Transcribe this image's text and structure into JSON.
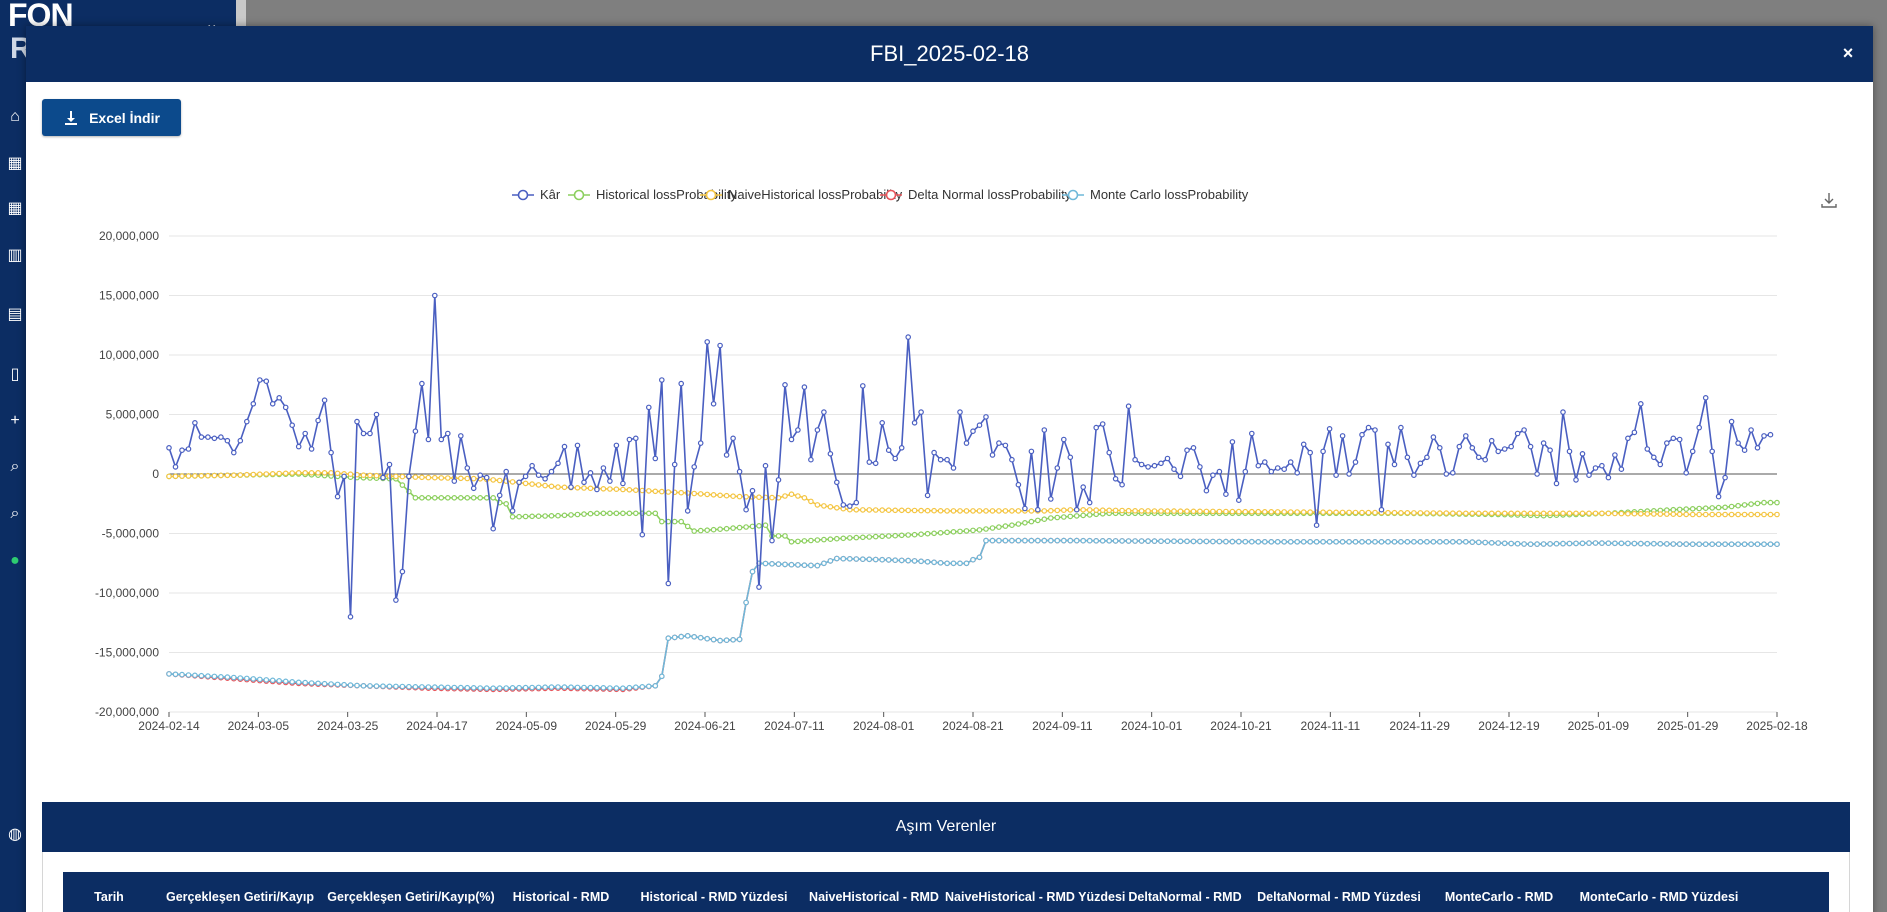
{
  "app": {
    "logo": "FON",
    "logo_sub": "R",
    "collapse_icon": "chevron-down-icon",
    "sidebar_icons": [
      "home-icon",
      "table-icon",
      "table-icon",
      "map-icon",
      "document-icon",
      "file-icon",
      "plus-icon",
      "search-icon",
      "search-icon",
      "dot-icon",
      "globe-icon"
    ]
  },
  "modal": {
    "title": "FBI_2025-02-18",
    "close_label": "×",
    "excel_button_label": "Excel İndir",
    "section_title": "Aşım Verenler",
    "table_headers": [
      "Tarih",
      "Gerçekleşen Getiri/Kayıp",
      "Gerçekleşen Getiri/Kayıp(%)",
      "Historical - RMD",
      "Historical - RMD Yüzdesi",
      "NaiveHistorical - RMD",
      "NaiveHistorical - RMD Yüzdesi",
      "DeltaNormal - RMD",
      "DeltaNormal - RMD Yüzdesi",
      "MonteCarlo - RMD",
      "MonteCarlo - RMD Yüzdesi"
    ]
  },
  "chart_data": {
    "type": "line",
    "legend_position": "top-center",
    "grid": true,
    "ylim": [
      -20000000,
      20000000
    ],
    "yticks": [
      20000000,
      15000000,
      10000000,
      5000000,
      0,
      -5000000,
      -10000000,
      -15000000,
      -20000000
    ],
    "ytick_labels": [
      "20,000,000",
      "15,000,000",
      "10,000,000",
      "5,000,000",
      "0",
      "-5,000,000",
      "-10,000,000",
      "-15,000,000",
      "-20,000,000"
    ],
    "xtick_labels": [
      "2024-02-14",
      "2024-03-05",
      "2024-03-25",
      "2024-04-17",
      "2024-05-09",
      "2024-05-29",
      "2024-06-21",
      "2024-07-11",
      "2024-08-01",
      "2024-08-21",
      "2024-09-11",
      "2024-10-01",
      "2024-10-21",
      "2024-11-11",
      "2024-11-29",
      "2024-12-19",
      "2025-01-09",
      "2025-01-29",
      "2025-02-18"
    ],
    "series": [
      {
        "name": "Kâr",
        "color": "#4a5fc1",
        "values": [
          2200000,
          600000,
          2000000,
          2100000,
          4300000,
          3100000,
          3100000,
          3000000,
          3100000,
          2800000,
          1800000,
          2800000,
          4400000,
          5900000,
          7900000,
          7800000,
          5900000,
          6400000,
          5600000,
          4100000,
          2300000,
          3400000,
          2100000,
          4500000,
          6200000,
          1800000,
          -1900000,
          -200000,
          -12000000,
          4400000,
          3400000,
          3400000,
          5000000,
          -300000,
          800000,
          -10600000,
          -8200000,
          -200000,
          3600000,
          7600000,
          2900000,
          15000000,
          2900000,
          3400000,
          -600000,
          3200000,
          500000,
          -1200000,
          -100000,
          -300000,
          -4600000,
          -1800000,
          200000,
          -3100000,
          -700000,
          -200000,
          700000,
          -100000,
          -400000,
          200000,
          900000,
          2300000,
          -1100000,
          2400000,
          -700000,
          100000,
          -1300000,
          500000,
          -600000,
          2400000,
          -800000,
          2900000,
          3000000,
          -5100000,
          5600000,
          1300000,
          7900000,
          -9200000,
          800000,
          7600000,
          -3100000,
          600000,
          2600000,
          11100000,
          5900000,
          10800000,
          1600000,
          3000000,
          200000,
          -3000000,
          -1400000,
          -9500000,
          700000,
          -5600000,
          -500000,
          7500000,
          2900000,
          3700000,
          7300000,
          1200000,
          3700000,
          5200000,
          1700000,
          -700000,
          -2600000,
          -2700000,
          -2400000,
          7400000,
          1000000,
          900000,
          4300000,
          2000000,
          1300000,
          2200000,
          11500000,
          4300000,
          5200000,
          -1800000,
          1800000,
          1200000,
          1200000,
          500000,
          5200000,
          2600000,
          3600000,
          4100000,
          4800000,
          1600000,
          2600000,
          2400000,
          1200000,
          -900000,
          -2900000,
          1900000,
          -3000000,
          3700000,
          -2100000,
          500000,
          2900000,
          1400000,
          -3000000,
          -1100000,
          -2400000,
          3900000,
          4200000,
          1800000,
          -400000,
          -900000,
          5700000,
          1200000,
          800000,
          600000,
          700000,
          900000,
          1300000,
          400000,
          -200000,
          2000000,
          2200000,
          600000,
          -1400000,
          -100000,
          200000,
          -1700000,
          2700000,
          -2200000,
          200000,
          3400000,
          700000,
          1000000,
          200000,
          500000,
          400000,
          1000000,
          100000,
          2500000,
          1800000,
          -4300000,
          1900000,
          3800000,
          -100000,
          3200000,
          0,
          1000000,
          3300000,
          3900000,
          3700000,
          -3000000,
          2500000,
          800000,
          3900000,
          1400000,
          -100000,
          900000,
          1400000,
          3100000,
          2200000,
          0,
          100000,
          2300000,
          3200000,
          2200000,
          1400000,
          1200000,
          2800000,
          1900000,
          2100000,
          2300000,
          3400000,
          3700000,
          2300000,
          0,
          2600000,
          2000000,
          -800000,
          5200000,
          1900000,
          -500000,
          1700000,
          -100000,
          500000,
          700000,
          -300000,
          1600000,
          400000,
          3000000,
          3500000,
          5900000,
          2100000,
          1400000,
          800000,
          2600000,
          3000000,
          2900000,
          100000,
          1900000,
          3900000,
          6400000,
          1900000,
          -1900000,
          -300000,
          4400000,
          2600000,
          2000000,
          3700000,
          2200000,
          3200000,
          3300000
        ]
      },
      {
        "name": "Historical lossProbability",
        "color": "#8ccf5e",
        "points": [
          [
            0,
            -200000
          ],
          [
            10,
            -100000
          ],
          [
            20,
            0
          ],
          [
            29,
            -300000
          ],
          [
            35,
            -400000
          ],
          [
            38,
            -2000000
          ],
          [
            44,
            -2000000
          ],
          [
            48,
            -2000000
          ],
          [
            50,
            -2000000
          ],
          [
            51,
            -2400000
          ],
          [
            52,
            -2500000
          ],
          [
            53,
            -3600000
          ],
          [
            60,
            -3500000
          ],
          [
            66,
            -3300000
          ],
          [
            72,
            -3300000
          ],
          [
            75,
            -3300000
          ],
          [
            76,
            -4000000
          ],
          [
            79,
            -4000000
          ],
          [
            81,
            -4800000
          ],
          [
            86,
            -4600000
          ],
          [
            90,
            -4400000
          ],
          [
            92,
            -4300000
          ],
          [
            93,
            -5200000
          ],
          [
            95,
            -5200000
          ],
          [
            96,
            -5700000
          ],
          [
            104,
            -5400000
          ],
          [
            115,
            -5100000
          ],
          [
            125,
            -4700000
          ],
          [
            130,
            -4300000
          ],
          [
            136,
            -3700000
          ],
          [
            145,
            -3300000
          ],
          [
            170,
            -3300000
          ],
          [
            190,
            -3300000
          ],
          [
            205,
            -3400000
          ],
          [
            212,
            -3500000
          ],
          [
            222,
            -3300000
          ],
          [
            232,
            -3000000
          ],
          [
            240,
            -2800000
          ],
          [
            246,
            -2400000
          ],
          [
            248,
            -2400000
          ]
        ]
      },
      {
        "name": "NaiveHistorical lossProbability",
        "color": "#f4c542",
        "points": [
          [
            0,
            -200000
          ],
          [
            10,
            -100000
          ],
          [
            20,
            100000
          ],
          [
            25,
            100000
          ],
          [
            30,
            -100000
          ],
          [
            40,
            -300000
          ],
          [
            48,
            -400000
          ],
          [
            52,
            -600000
          ],
          [
            60,
            -1100000
          ],
          [
            70,
            -1300000
          ],
          [
            80,
            -1600000
          ],
          [
            88,
            -1900000
          ],
          [
            94,
            -2000000
          ],
          [
            96,
            -1700000
          ],
          [
            98,
            -2000000
          ],
          [
            100,
            -2600000
          ],
          [
            105,
            -3000000
          ],
          [
            120,
            -3100000
          ],
          [
            135,
            -3100000
          ],
          [
            140,
            -3000000
          ],
          [
            150,
            -3100000
          ],
          [
            175,
            -3200000
          ],
          [
            200,
            -3300000
          ],
          [
            220,
            -3300000
          ],
          [
            235,
            -3400000
          ],
          [
            248,
            -3400000
          ]
        ]
      },
      {
        "name": "Delta Normal lossProbability",
        "color": "#e8565c",
        "points": [
          [
            0,
            -16800000
          ],
          [
            10,
            -17200000
          ],
          [
            20,
            -17600000
          ],
          [
            30,
            -17800000
          ],
          [
            40,
            -18000000
          ],
          [
            50,
            -18100000
          ],
          [
            60,
            -18000000
          ],
          [
            70,
            -18100000
          ],
          [
            75,
            -17800000
          ],
          [
            76,
            -17000000
          ],
          [
            77,
            -13800000
          ],
          [
            80,
            -13600000
          ],
          [
            85,
            -14000000
          ],
          [
            88,
            -13900000
          ],
          [
            89,
            -10800000
          ],
          [
            90,
            -8200000
          ],
          [
            91,
            -7500000
          ],
          [
            95,
            -7600000
          ],
          [
            100,
            -7700000
          ],
          [
            103,
            -7100000
          ],
          [
            110,
            -7200000
          ],
          [
            115,
            -7300000
          ],
          [
            120,
            -7500000
          ],
          [
            123,
            -7500000
          ],
          [
            124,
            -7200000
          ],
          [
            125,
            -7000000
          ],
          [
            126,
            -5600000
          ],
          [
            140,
            -5600000
          ],
          [
            170,
            -5700000
          ],
          [
            200,
            -5700000
          ],
          [
            210,
            -5900000
          ],
          [
            220,
            -5800000
          ],
          [
            235,
            -5900000
          ],
          [
            248,
            -5900000
          ]
        ]
      },
      {
        "name": "Monte Carlo lossProbability",
        "color": "#6fb8d9",
        "points": [
          [
            0,
            -16800000
          ],
          [
            10,
            -17100000
          ],
          [
            20,
            -17500000
          ],
          [
            30,
            -17800000
          ],
          [
            40,
            -17900000
          ],
          [
            50,
            -18000000
          ],
          [
            60,
            -17900000
          ],
          [
            70,
            -18000000
          ],
          [
            75,
            -17800000
          ],
          [
            76,
            -17000000
          ],
          [
            77,
            -13800000
          ],
          [
            80,
            -13600000
          ],
          [
            85,
            -14000000
          ],
          [
            88,
            -13900000
          ],
          [
            89,
            -10800000
          ],
          [
            90,
            -8200000
          ],
          [
            91,
            -7500000
          ],
          [
            95,
            -7600000
          ],
          [
            100,
            -7700000
          ],
          [
            103,
            -7100000
          ],
          [
            110,
            -7200000
          ],
          [
            115,
            -7300000
          ],
          [
            120,
            -7500000
          ],
          [
            123,
            -7500000
          ],
          [
            124,
            -7200000
          ],
          [
            125,
            -7000000
          ],
          [
            126,
            -5600000
          ],
          [
            140,
            -5600000
          ],
          [
            170,
            -5700000
          ],
          [
            200,
            -5700000
          ],
          [
            210,
            -5900000
          ],
          [
            220,
            -5800000
          ],
          [
            235,
            -5900000
          ],
          [
            248,
            -5900000
          ]
        ]
      }
    ]
  }
}
